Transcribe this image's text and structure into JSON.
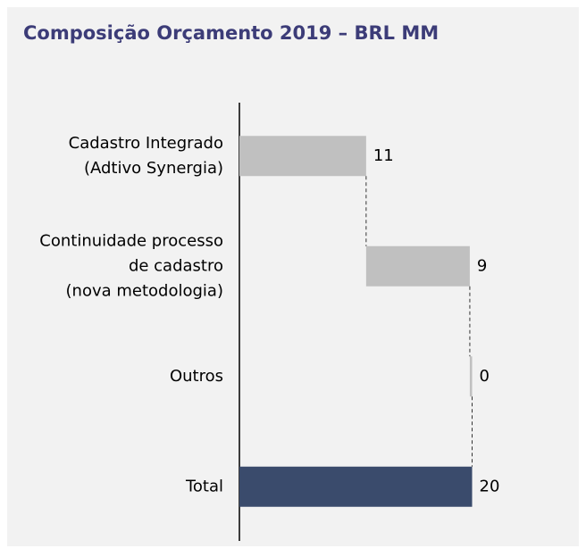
{
  "chart_data": {
    "type": "waterfall",
    "title": "Composição Orçamento 2019 – BRL MM",
    "categories": [
      [
        "Cadastro Integrado",
        "(Adtivo Synergia)"
      ],
      [
        "Continuidade processo",
        "de cadastro",
        "(nova metodologia)"
      ],
      [
        "Outros"
      ],
      [
        "Total"
      ]
    ],
    "values": [
      11,
      9,
      0.2,
      20.2
    ],
    "value_labels": [
      "11",
      "9",
      "0",
      "20"
    ],
    "colors": [
      "#c0c0c0",
      "#c0c0c0",
      "#c0c0c0",
      "#3a4b6c"
    ],
    "xlim": [
      0,
      29
    ]
  }
}
